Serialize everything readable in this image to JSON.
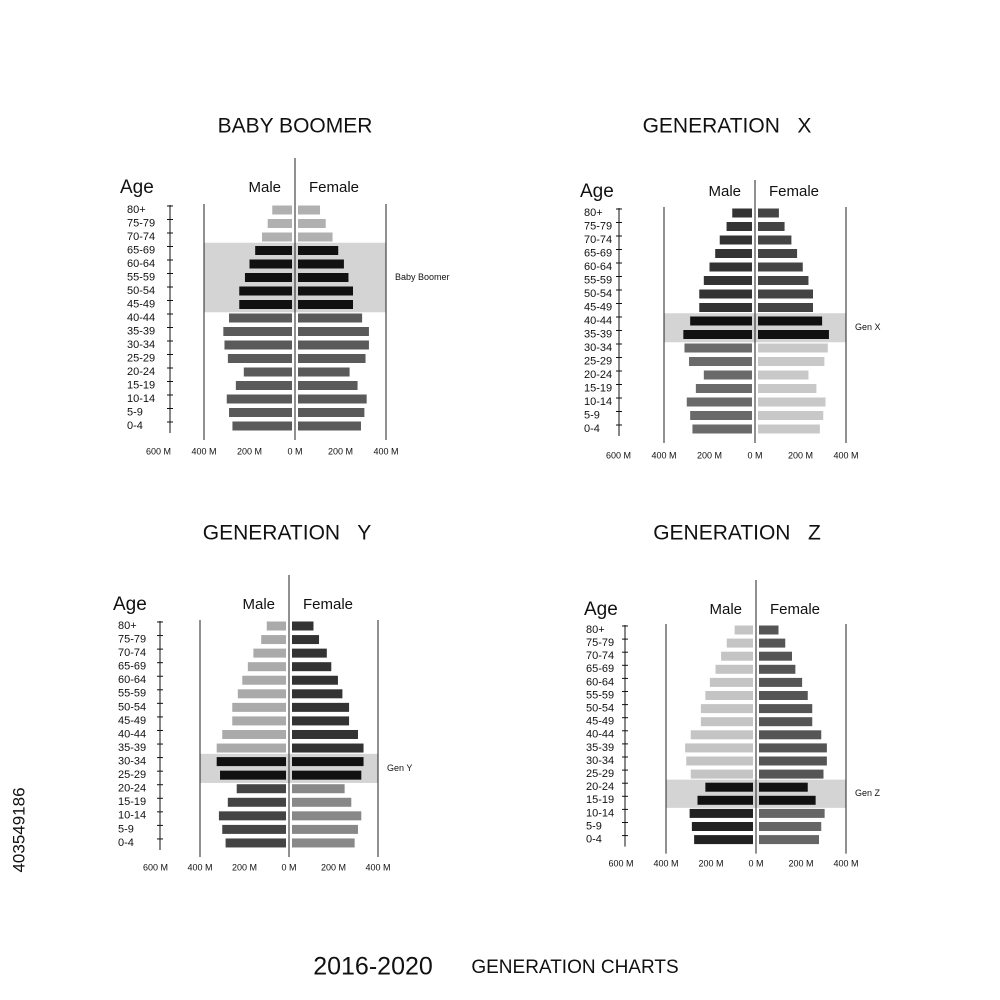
{
  "chart_data": [
    {
      "type": "pyramid",
      "title": "BABY BOOMER",
      "age_label": "Age",
      "categories": [
        "80+",
        "75-79",
        "70-74",
        "65-69",
        "60-64",
        "55-59",
        "50-54",
        "45-49",
        "40-44",
        "35-39",
        "30-34",
        "25-29",
        "20-24",
        "15-19",
        "10-14",
        "5-9",
        "0-4"
      ],
      "series": [
        {
          "name": "Male",
          "side": "left",
          "colors": {
            "above": "#b0b0b0",
            "highlight": "#111111",
            "below": "#5a5a5a"
          },
          "values": [
            100,
            120,
            145,
            175,
            200,
            220,
            245,
            245,
            290,
            315,
            310,
            295,
            225,
            260,
            300,
            290,
            275
          ]
        },
        {
          "name": "Female",
          "side": "right",
          "colors": {
            "above": "#b0b0b0",
            "highlight": "#111111",
            "below": "#5a5a5a"
          },
          "values": [
            110,
            135,
            165,
            190,
            215,
            235,
            255,
            255,
            295,
            325,
            325,
            310,
            240,
            275,
            315,
            305,
            290
          ]
        }
      ],
      "highlight": {
        "label": "Baby Boomer",
        "categories": [
          "65-69",
          "60-64",
          "55-59",
          "50-54",
          "45-49"
        ],
        "color": "#d4d4d4"
      },
      "male_xlim": [
        0,
        400
      ],
      "female_xlim": [
        0,
        400
      ],
      "male_xticks": [
        {
          "value": 600,
          "label": "600 M"
        },
        {
          "value": 400,
          "label": "400 M"
        },
        {
          "value": 200,
          "label": "200 M"
        },
        {
          "value": 0,
          "label": "0 M"
        }
      ],
      "female_xticks": [
        {
          "value": 200,
          "label": "200 M"
        },
        {
          "value": 400,
          "label": "400 M"
        }
      ]
    },
    {
      "type": "pyramid",
      "title": "GENERATION   X",
      "age_label": "Age",
      "categories": [
        "80+",
        "75-79",
        "70-74",
        "65-69",
        "60-64",
        "55-59",
        "50-54",
        "45-49",
        "40-44",
        "35-39",
        "30-34",
        "25-29",
        "20-24",
        "15-19",
        "10-14",
        "5-9",
        "0-4"
      ],
      "series": [
        {
          "name": "Male",
          "side": "left",
          "colors": {
            "above": "#333333",
            "highlight": "#111111",
            "below": "#6a6a6a"
          },
          "values": [
            100,
            125,
            155,
            175,
            200,
            225,
            245,
            245,
            285,
            315,
            310,
            290,
            225,
            260,
            300,
            285,
            275
          ]
        },
        {
          "name": "Female",
          "side": "right",
          "colors": {
            "above": "#444444",
            "highlight": "#111111",
            "below": "#c8c8c8"
          },
          "values": [
            105,
            130,
            160,
            185,
            210,
            235,
            255,
            255,
            295,
            325,
            320,
            305,
            235,
            270,
            310,
            300,
            285
          ]
        }
      ],
      "highlight": {
        "label": "Gen X",
        "categories": [
          "40-44",
          "35-39"
        ],
        "color": "#d4d4d4"
      },
      "male_xlim": [
        0,
        400
      ],
      "female_xlim": [
        0,
        400
      ],
      "male_xticks": [
        {
          "value": 600,
          "label": "600 M"
        },
        {
          "value": 400,
          "label": "400 M"
        },
        {
          "value": 200,
          "label": "200 M"
        },
        {
          "value": 0,
          "label": "0 M"
        }
      ],
      "female_xticks": [
        {
          "value": 200,
          "label": "200 M"
        },
        {
          "value": 400,
          "label": "400 M"
        }
      ]
    },
    {
      "type": "pyramid",
      "title": "GENERATION   Y",
      "age_label": "Age",
      "categories": [
        "80+",
        "75-79",
        "70-74",
        "65-69",
        "60-64",
        "55-59",
        "50-54",
        "45-49",
        "40-44",
        "35-39",
        "30-34",
        "25-29",
        "20-24",
        "15-19",
        "10-14",
        "5-9",
        "0-4"
      ],
      "series": [
        {
          "name": "Male",
          "side": "left",
          "colors": {
            "above": "#aaaaaa",
            "highlight": "#111111",
            "below": "#444444"
          },
          "values": [
            100,
            125,
            160,
            185,
            210,
            230,
            255,
            255,
            300,
            325,
            325,
            310,
            235,
            275,
            315,
            300,
            285
          ]
        },
        {
          "name": "Female",
          "side": "right",
          "colors": {
            "above": "#333333",
            "highlight": "#111111",
            "below": "#888888"
          },
          "values": [
            110,
            135,
            170,
            190,
            220,
            240,
            270,
            270,
            310,
            335,
            335,
            325,
            250,
            280,
            325,
            310,
            295
          ]
        }
      ],
      "highlight": {
        "label": "Gen Y",
        "categories": [
          "30-34",
          "25-29"
        ],
        "color": "#d4d4d4"
      },
      "male_xlim": [
        0,
        400
      ],
      "female_xlim": [
        0,
        400
      ],
      "male_xticks": [
        {
          "value": 600,
          "label": "600 M"
        },
        {
          "value": 400,
          "label": "400 M"
        },
        {
          "value": 200,
          "label": "200 M"
        },
        {
          "value": 0,
          "label": "0 M"
        }
      ],
      "female_xticks": [
        {
          "value": 200,
          "label": "200 M"
        },
        {
          "value": 400,
          "label": "400 M"
        }
      ]
    },
    {
      "type": "pyramid",
      "title": "GENERATION   Z",
      "age_label": "Age",
      "categories": [
        "80+",
        "75-79",
        "70-74",
        "65-69",
        "60-64",
        "55-59",
        "50-54",
        "45-49",
        "40-44",
        "35-39",
        "30-34",
        "25-29",
        "20-24",
        "15-19",
        "10-14",
        "5-9",
        "0-4"
      ],
      "series": [
        {
          "name": "Male",
          "side": "left",
          "colors": {
            "above": "#c4c4c4",
            "highlight": "#111111",
            "below": "#222222"
          },
          "values": [
            95,
            130,
            155,
            180,
            205,
            225,
            245,
            245,
            290,
            315,
            310,
            290,
            225,
            260,
            295,
            285,
            275
          ]
        },
        {
          "name": "Female",
          "side": "right",
          "colors": {
            "above": "#555555",
            "highlight": "#111111",
            "below": "#666666"
          },
          "values": [
            100,
            130,
            160,
            175,
            205,
            230,
            250,
            250,
            290,
            315,
            315,
            300,
            230,
            265,
            305,
            290,
            280
          ]
        }
      ],
      "highlight": {
        "label": "Gen Z",
        "categories": [
          "20-24",
          "15-19"
        ],
        "color": "#d4d4d4"
      },
      "male_xlim": [
        0,
        400
      ],
      "female_xlim": [
        0,
        400
      ],
      "male_xticks": [
        {
          "value": 600,
          "label": "600 M"
        },
        {
          "value": 400,
          "label": "400 M"
        },
        {
          "value": 200,
          "label": "200 M"
        },
        {
          "value": 0,
          "label": "0 M"
        }
      ],
      "female_xticks": [
        {
          "value": 200,
          "label": "200 M"
        },
        {
          "value": 400,
          "label": "400 M"
        }
      ]
    }
  ],
  "footer": {
    "years": "2016-2020",
    "text": "GENERATION CHARTS"
  },
  "watermark_id": "403549186"
}
